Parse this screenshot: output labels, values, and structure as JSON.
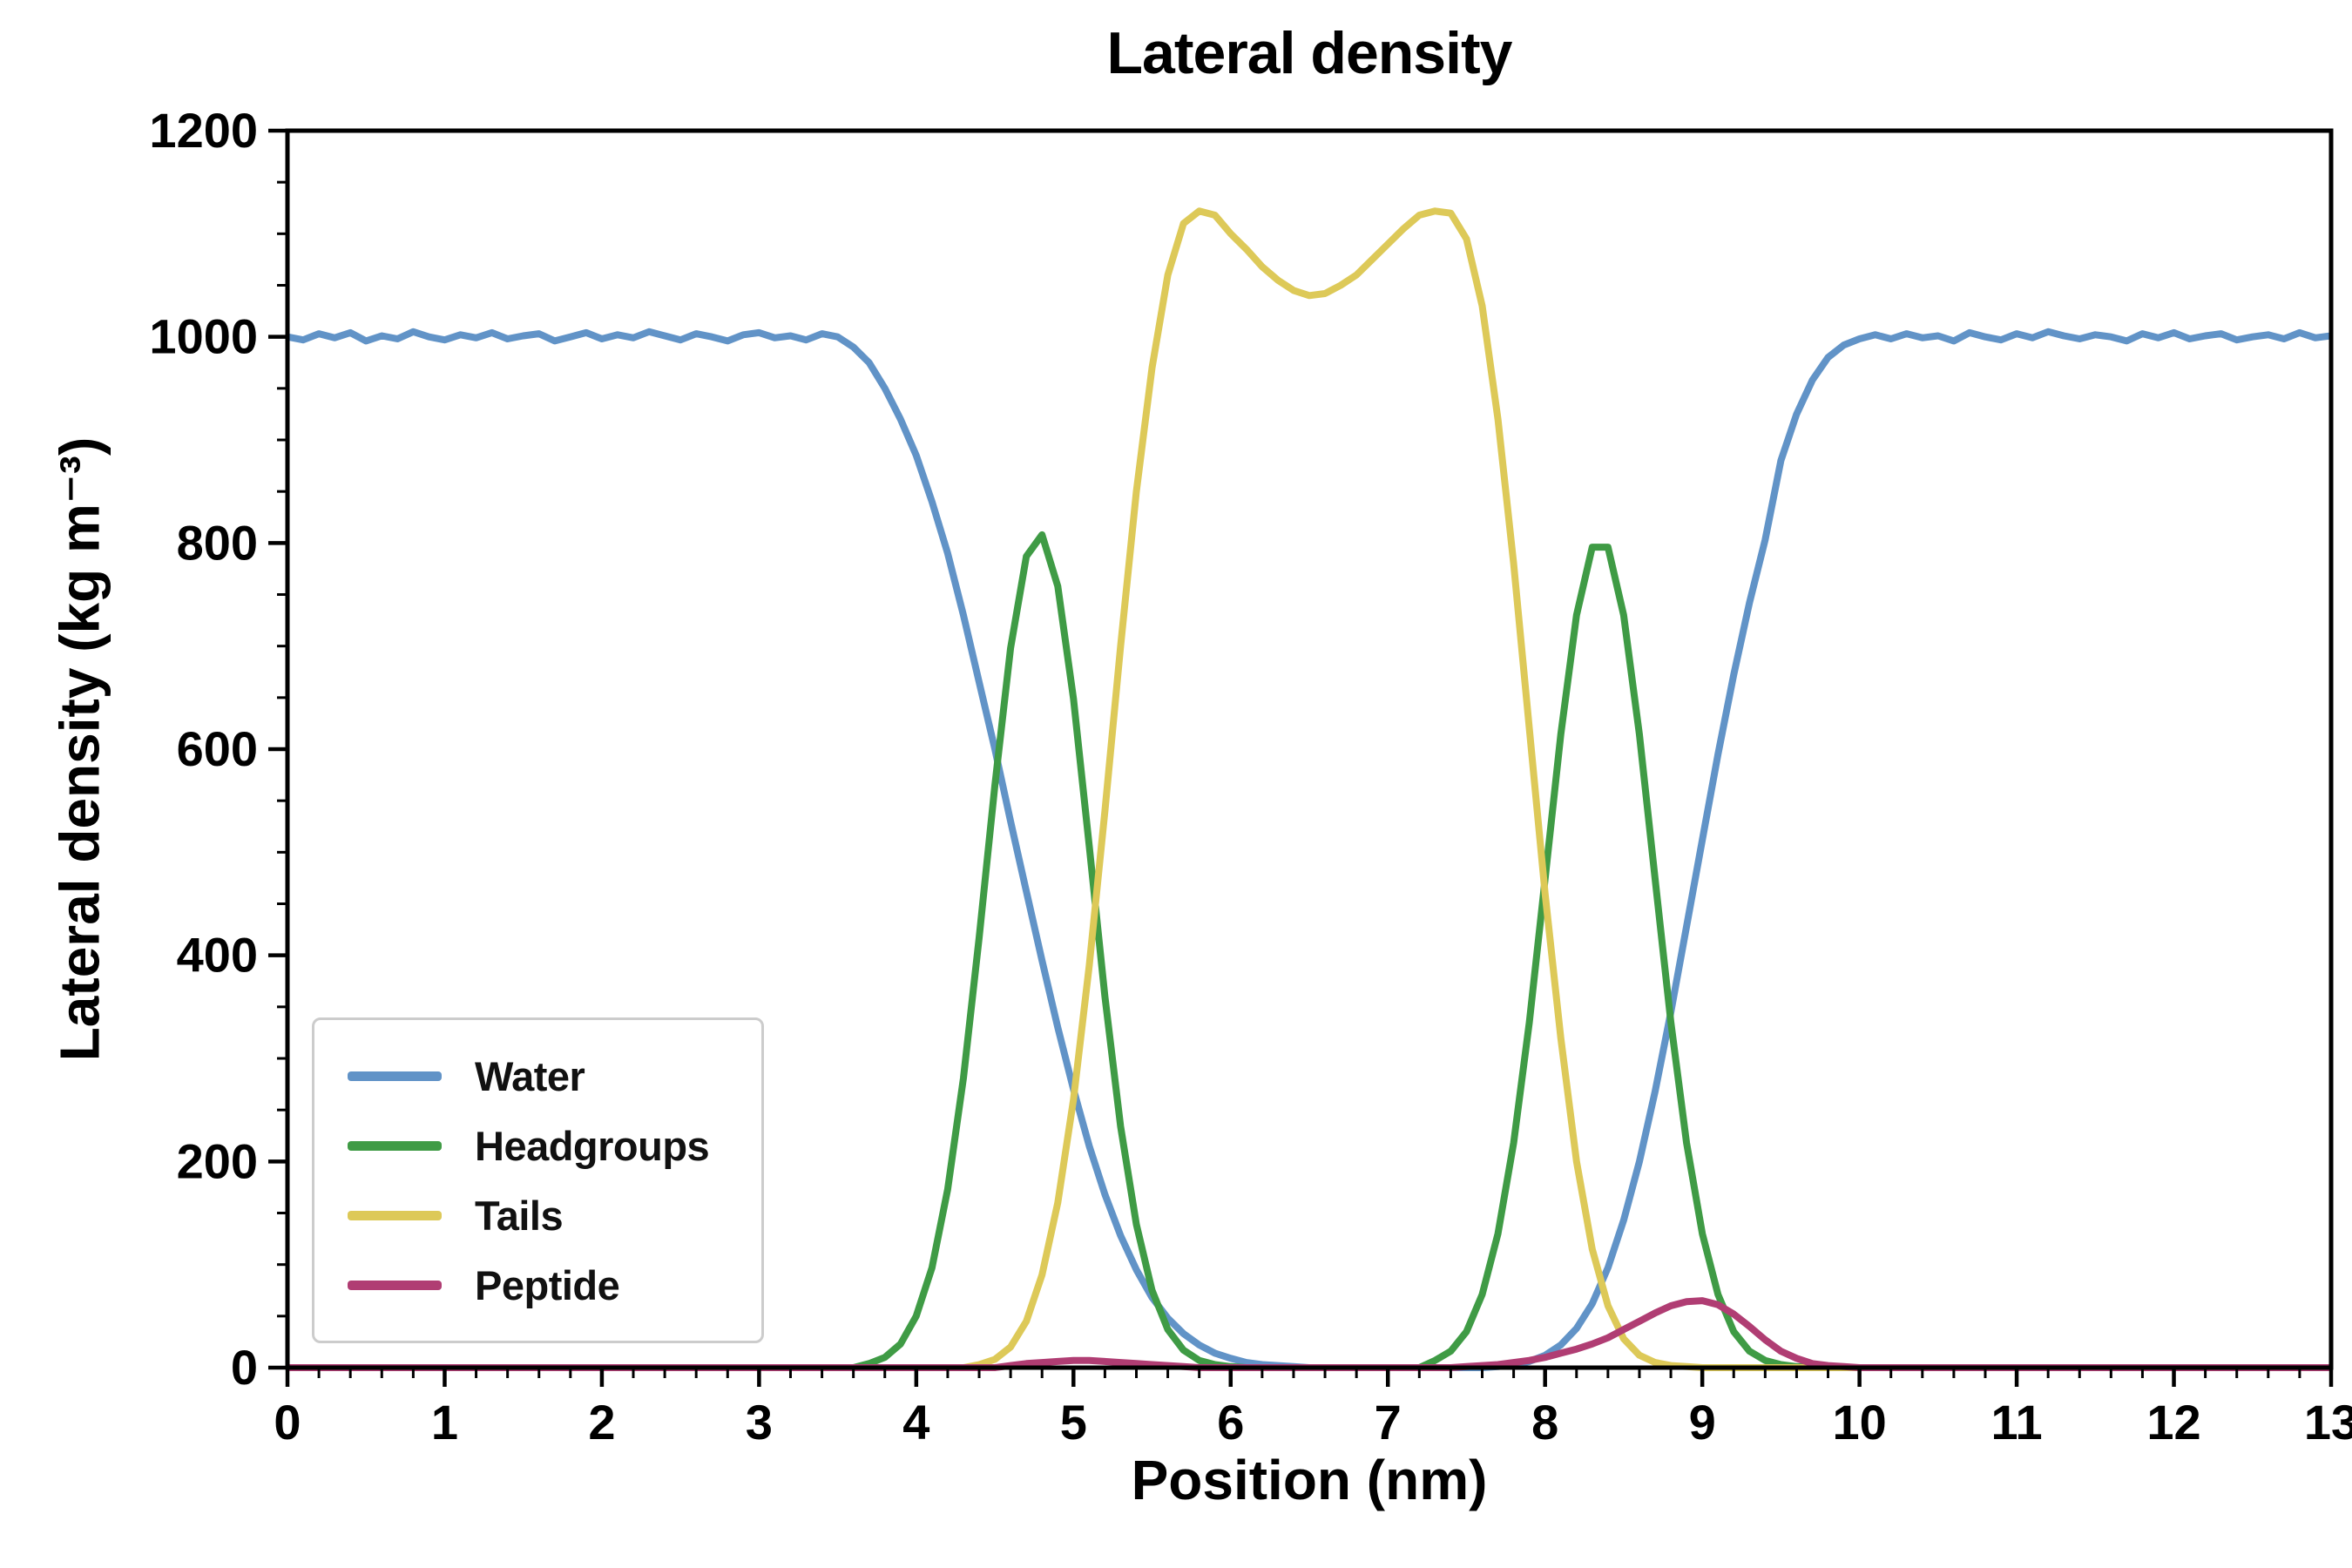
{
  "chart_data": {
    "type": "line",
    "title": "Lateral density",
    "xlabel": "Position (nm)",
    "ylabel": "Lateral density (kg m⁻³)",
    "xlim": [
      0,
      13
    ],
    "ylim": [
      0,
      1200
    ],
    "x_ticks": [
      0,
      1,
      2,
      3,
      4,
      5,
      6,
      7,
      8,
      9,
      10,
      11,
      12,
      13
    ],
    "y_ticks": [
      0,
      200,
      400,
      600,
      800,
      1000,
      1200
    ],
    "x_minor_step": 0.2,
    "y_minor_step": 50,
    "grid": false,
    "legend_position": "lower left",
    "x": {
      "start": 0,
      "step": 0.1,
      "count": 131
    },
    "series": [
      {
        "name": "Water",
        "color": "#6193c7",
        "values": [
          1000,
          997,
          1003,
          999,
          1004,
          996,
          1001,
          998,
          1005,
          1000,
          997,
          1002,
          999,
          1004,
          998,
          1001,
          1003,
          996,
          1000,
          1004,
          998,
          1002,
          999,
          1005,
          1001,
          997,
          1003,
          1000,
          996,
          1002,
          1004,
          999,
          1001,
          997,
          1003,
          1000,
          990,
          975,
          950,
          920,
          885,
          840,
          790,
          730,
          665,
          600,
          530,
          462,
          395,
          330,
          270,
          215,
          168,
          128,
          95,
          68,
          48,
          33,
          22,
          14,
          9,
          5,
          3,
          2,
          1,
          0,
          0,
          0,
          0,
          0,
          0,
          0,
          0,
          0,
          0,
          0,
          0,
          1,
          3,
          6,
          12,
          22,
          38,
          62,
          97,
          143,
          200,
          268,
          345,
          428,
          512,
          595,
          672,
          742,
          803,
          880,
          925,
          958,
          980,
          992,
          998,
          1002,
          998,
          1003,
          999,
          1001,
          996,
          1004,
          1000,
          997,
          1003,
          999,
          1005,
          1001,
          998,
          1002,
          1000,
          996,
          1003,
          999,
          1004,
          998,
          1001,
          1003,
          997,
          1000,
          1002,
          998,
          1004,
          999,
          1001
        ]
      },
      {
        "name": "Headgroups",
        "color": "#3f9b45",
        "values": [
          0,
          0,
          0,
          0,
          0,
          0,
          0,
          0,
          0,
          0,
          0,
          0,
          0,
          0,
          0,
          0,
          0,
          0,
          0,
          0,
          0,
          0,
          0,
          0,
          0,
          0,
          0,
          0,
          0,
          0,
          0,
          0,
          0,
          0,
          0,
          0,
          0,
          4,
          10,
          23,
          50,
          97,
          173,
          281,
          417,
          565,
          698,
          787,
          808,
          758,
          649,
          506,
          360,
          234,
          139,
          75,
          37,
          17,
          7,
          3,
          1,
          0,
          0,
          0,
          0,
          0,
          0,
          0,
          0,
          0,
          0,
          0,
          0,
          7,
          16,
          35,
          71,
          130,
          218,
          335,
          474,
          614,
          730,
          796,
          796,
          730,
          614,
          474,
          335,
          218,
          130,
          71,
          35,
          16,
          7,
          3,
          1,
          0,
          0,
          0,
          0,
          0,
          0,
          0,
          0,
          0,
          0,
          0,
          0,
          0,
          0,
          0,
          0,
          0,
          0,
          0,
          0,
          0,
          0,
          0,
          0,
          0,
          0,
          0,
          0,
          0,
          0,
          0,
          0,
          0,
          0
        ]
      },
      {
        "name": "Tails",
        "color": "#ddc958",
        "values": [
          0,
          0,
          0,
          0,
          0,
          0,
          0,
          0,
          0,
          0,
          0,
          0,
          0,
          0,
          0,
          0,
          0,
          0,
          0,
          0,
          0,
          0,
          0,
          0,
          0,
          0,
          0,
          0,
          0,
          0,
          0,
          0,
          0,
          0,
          0,
          0,
          0,
          0,
          0,
          0,
          0,
          0,
          0,
          0,
          3,
          8,
          20,
          45,
          90,
          160,
          260,
          390,
          540,
          700,
          850,
          970,
          1060,
          1110,
          1122,
          1118,
          1100,
          1085,
          1068,
          1055,
          1045,
          1040,
          1042,
          1050,
          1060,
          1075,
          1090,
          1105,
          1118,
          1122,
          1120,
          1095,
          1030,
          920,
          780,
          620,
          460,
          320,
          200,
          115,
          60,
          28,
          12,
          5,
          2,
          1,
          0,
          0,
          0,
          0,
          0,
          0,
          0,
          0,
          0,
          0,
          0,
          0,
          0,
          0,
          0,
          0,
          0,
          0,
          0,
          0,
          0,
          0,
          0,
          0,
          0,
          0,
          0,
          0,
          0,
          0,
          0,
          0,
          0,
          0,
          0,
          0,
          0,
          0,
          0,
          0,
          0
        ]
      },
      {
        "name": "Peptide",
        "color": "#b03d73",
        "values": [
          0,
          0,
          0,
          0,
          0,
          0,
          0,
          0,
          0,
          0,
          0,
          0,
          0,
          0,
          0,
          0,
          0,
          0,
          0,
          0,
          0,
          0,
          0,
          0,
          0,
          0,
          0,
          0,
          0,
          0,
          0,
          0,
          0,
          0,
          0,
          0,
          0,
          0,
          0,
          0,
          0,
          0,
          0,
          0,
          0,
          0,
          2,
          4,
          5,
          6,
          7,
          7,
          6,
          5,
          4,
          3,
          2,
          1,
          0,
          0,
          0,
          0,
          0,
          0,
          0,
          0,
          0,
          0,
          0,
          0,
          0,
          0,
          0,
          0,
          0,
          1,
          2,
          3,
          5,
          7,
          10,
          14,
          18,
          23,
          29,
          37,
          45,
          53,
          60,
          64,
          65,
          61,
          52,
          40,
          27,
          16,
          9,
          4,
          2,
          1,
          0,
          0,
          0,
          0,
          0,
          0,
          0,
          0,
          0,
          0,
          0,
          0,
          0,
          0,
          0,
          0,
          0,
          0,
          0,
          0,
          0,
          0,
          0,
          0,
          0,
          0,
          0,
          0,
          0,
          0,
          0
        ]
      }
    ]
  }
}
